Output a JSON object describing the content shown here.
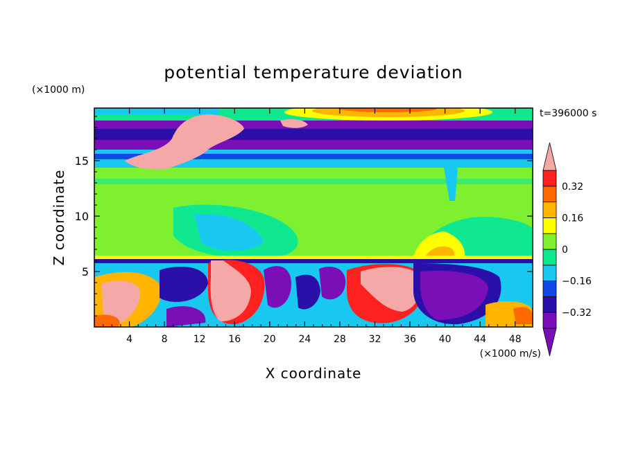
{
  "chart_data": {
    "type": "heatmap",
    "title": "potential temperature deviation",
    "xlabel": "X coordinate",
    "ylabel": "Z coordinate",
    "x_unit": "(×1000 m/s)",
    "y_unit": "(×1000 m)",
    "time_label": "t=396000 s",
    "xlim": [
      0,
      50
    ],
    "ylim": [
      0,
      19.75
    ],
    "x_ticks": [
      4,
      8,
      12,
      16,
      20,
      24,
      28,
      32,
      36,
      40,
      44,
      48
    ],
    "y_ticks": [
      5,
      10,
      15
    ],
    "colorbar": {
      "levels": [
        -0.4,
        -0.32,
        -0.24,
        -0.16,
        -0.08,
        0,
        0.08,
        0.16,
        0.24,
        0.32,
        0.4
      ],
      "labels": [
        "0.32",
        "0.16",
        "0",
        "−0.16",
        "−0.32"
      ],
      "label_values": [
        0.32,
        0.16,
        0,
        -0.16,
        -0.32
      ],
      "colors": [
        "#7a0fb8",
        "#2a10a8",
        "#1248e8",
        "#18c8f0",
        "#10e890",
        "#7ef030",
        "#ffff00",
        "#ffb400",
        "#ff6a00",
        "#ff2020"
      ],
      "over_color": "#f4a8a8",
      "under_color": "#7a0fb8"
    },
    "bands": [
      {
        "z": [
          18.6,
          19.75
        ],
        "level": "cyan"
      },
      {
        "z": [
          16.0,
          18.6
        ],
        "level": "purple"
      },
      {
        "z": [
          14.5,
          16.0
        ],
        "level": "blue-cyan"
      },
      {
        "z": [
          6.5,
          14.5
        ],
        "level": "green"
      },
      {
        "z": [
          0,
          6.2
        ],
        "level": "mixed"
      }
    ]
  }
}
